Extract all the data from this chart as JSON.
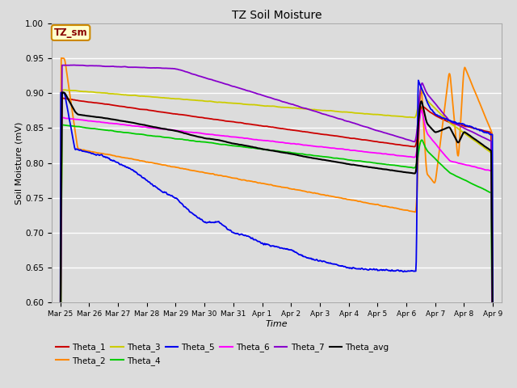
{
  "title": "TZ Soil Moisture",
  "xlabel": "Time",
  "ylabel": "Soil Moisture (mV)",
  "ylim": [
    0.6,
    1.0
  ],
  "background_color": "#dcdcdc",
  "tick_labels": [
    "Mar 25",
    "Mar 26",
    "Mar 27",
    "Mar 28",
    "Mar 29",
    "Mar 30",
    "Mar 31",
    "Apr 1",
    "Apr 2",
    "Apr 3",
    "Apr 4",
    "Apr 5",
    "Apr 6",
    "Apr 7",
    "Apr 8",
    "Apr 9"
  ],
  "colors": {
    "Theta_1": "#cc0000",
    "Theta_2": "#ff8800",
    "Theta_3": "#cccc00",
    "Theta_4": "#00cc00",
    "Theta_5": "#0000ee",
    "Theta_6": "#ff00ff",
    "Theta_7": "#8800cc",
    "Theta_avg": "#000000"
  },
  "annotation_text": "TZ_sm",
  "annotation_color": "#880000",
  "annotation_bg": "#ffffcc",
  "annotation_border": "#cc8800"
}
